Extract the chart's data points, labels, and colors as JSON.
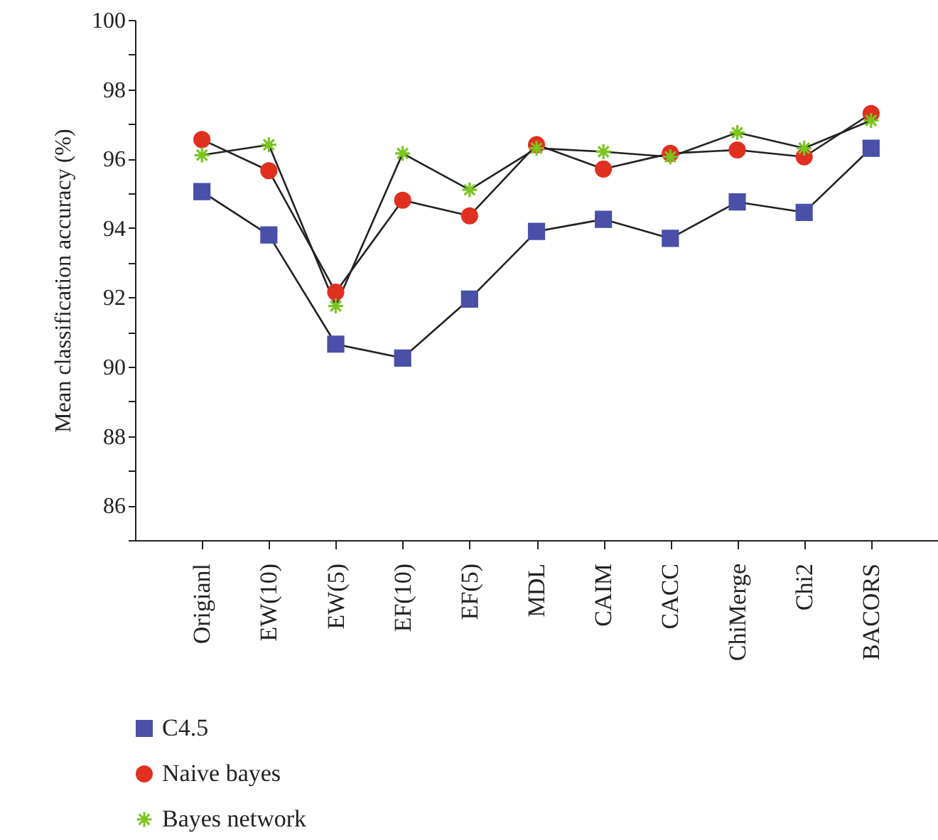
{
  "chart_data": {
    "type": "line",
    "ylabel": "Mean classification accuracy (%)",
    "categories": [
      "Origianl",
      "EW(10)",
      "EW(5)",
      "EF(10)",
      "EF(5)",
      "MDL",
      "CAIM",
      "CACC",
      "ChiMerge",
      "Chi2",
      "BACORS"
    ],
    "series": [
      {
        "name": "C4.5",
        "color": "#4a4fa8",
        "marker": "square",
        "values": [
          95.05,
          93.8,
          90.65,
          90.25,
          91.95,
          93.9,
          94.25,
          93.7,
          94.75,
          94.45,
          96.3
        ]
      },
      {
        "name": "Naive bayes",
        "color": "#e03020",
        "marker": "circle",
        "values": [
          96.55,
          95.65,
          92.15,
          94.8,
          94.35,
          96.4,
          95.7,
          96.15,
          96.25,
          96.05,
          97.3
        ]
      },
      {
        "name": "Bayes network",
        "color": "#7ac520",
        "marker": "cross",
        "values": [
          96.1,
          96.4,
          91.75,
          96.15,
          95.1,
          96.3,
          96.2,
          96.05,
          96.75,
          96.3,
          97.1
        ]
      }
    ],
    "ylim": [
      85,
      100
    ],
    "yticks": [
      {
        "value": 85,
        "label": null
      },
      86,
      {
        "value": 87,
        "label": null
      },
      88,
      {
        "value": 89,
        "label": null
      },
      90,
      {
        "value": 91,
        "label": null
      },
      92,
      {
        "value": 93,
        "label": null
      },
      94,
      {
        "value": 95,
        "label": null
      },
      96,
      {
        "value": 97,
        "label": null
      },
      98,
      {
        "value": 99,
        "label": null
      },
      100
    ],
    "grid": false,
    "legend": "bottom left"
  }
}
